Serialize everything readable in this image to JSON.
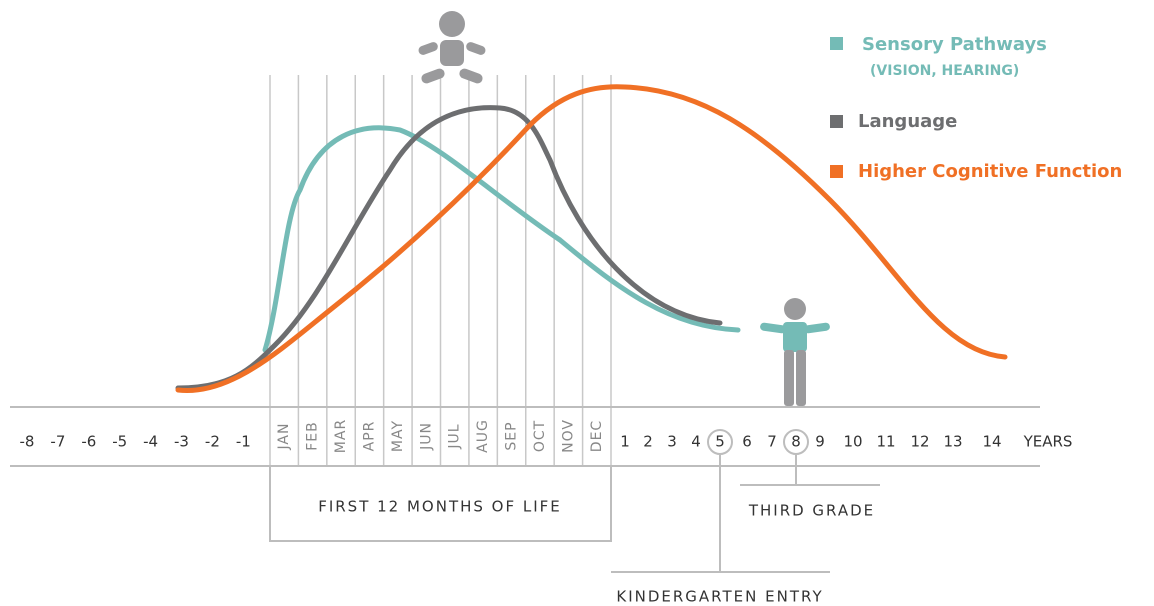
{
  "legend": [
    {
      "label": "Sensory Pathways",
      "sublabel": "(VISION, HEARING)"
    },
    {
      "label": "Language"
    },
    {
      "label": "Higher Cognitive Function"
    }
  ],
  "timeline": {
    "prenatal": [
      "-8",
      "-7",
      "-6",
      "-5",
      "-4",
      "-3",
      "-2",
      "-1"
    ],
    "months": [
      "JAN",
      "FEB",
      "MAR",
      "APR",
      "MAY",
      "JUN",
      "JUL",
      "AUG",
      "SEP",
      "OCT",
      "NOV",
      "DEC"
    ],
    "years": [
      "1",
      "2",
      "3",
      "4",
      "5",
      "6",
      "7",
      "8",
      "9",
      "10",
      "11",
      "12",
      "13",
      "14"
    ],
    "unit": "YEARS"
  },
  "annotations": {
    "first_year": "FIRST 12 MONTHS OF LIFE",
    "third_grade": "THIRD GRADE",
    "kindergarten": "KINDERGARTEN ENTRY"
  }
}
